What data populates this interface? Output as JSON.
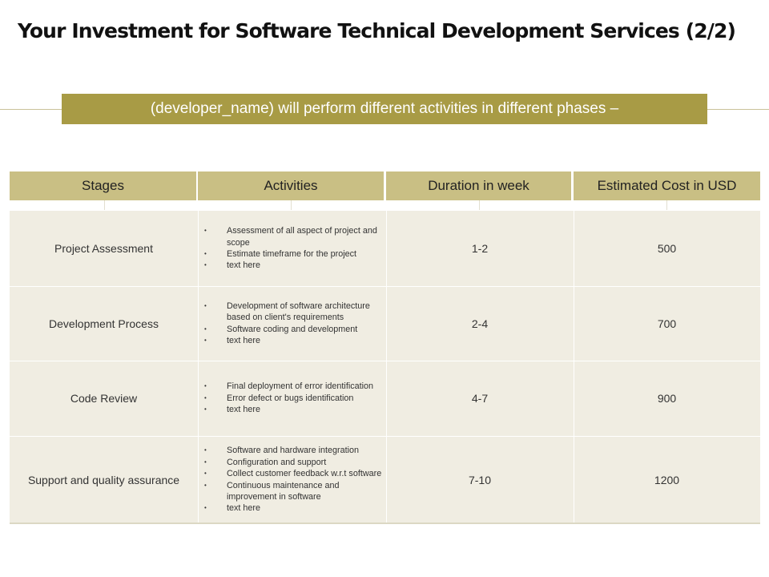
{
  "title": "Your Investment for Software Technical Development  Services (2/2)",
  "banner": "(developer_name) will perform different activities in different phases –",
  "colors": {
    "header_bg": "#c9bf84",
    "banner_bg": "#a89b45",
    "cell_bg": "#f0ede2"
  },
  "table": {
    "headers": [
      "Stages",
      "Activities",
      "Duration in week",
      "Estimated Cost in USD"
    ],
    "rows": [
      {
        "stage": "Project Assessment",
        "activities": [
          "Assessment of all aspect of project and scope",
          "Estimate timeframe for the project",
          "text here"
        ],
        "duration": "1-2",
        "cost": "500"
      },
      {
        "stage": "Development Process",
        "activities": [
          "Development of software architecture based on client's requirements",
          "Software coding and development",
          "text here"
        ],
        "duration": "2-4",
        "cost": "700"
      },
      {
        "stage": "Code Review",
        "activities": [
          "Final deployment of error identification",
          "Error defect or bugs identification",
          "text here"
        ],
        "duration": "4-7",
        "cost": "900"
      },
      {
        "stage": "Support and quality assurance",
        "activities": [
          "Software and hardware integration",
          "Configuration and support",
          "Collect customer feedback w.r.t software",
          "Continuous maintenance and improvement in software",
          "text here"
        ],
        "duration": "7-10",
        "cost": "1200"
      }
    ]
  }
}
